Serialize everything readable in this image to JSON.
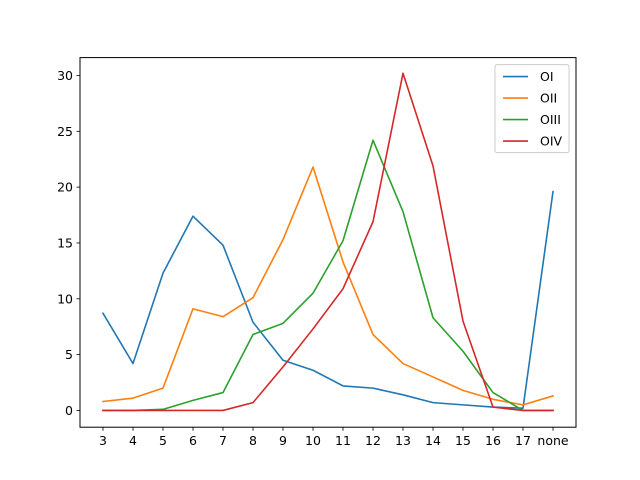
{
  "chart_data": {
    "type": "line",
    "title": "",
    "xlabel": "",
    "ylabel": "",
    "categories": [
      "3",
      "4",
      "5",
      "6",
      "7",
      "8",
      "9",
      "10",
      "11",
      "12",
      "13",
      "14",
      "15",
      "16",
      "17",
      "none"
    ],
    "ylim": [
      -1.5,
      31.6
    ],
    "yticks": [
      0,
      5,
      10,
      15,
      20,
      25,
      30
    ],
    "grid": false,
    "legend_position": "top-right",
    "series": [
      {
        "name": "OI",
        "color": "#1f77b4",
        "values": [
          8.7,
          4.2,
          12.3,
          17.4,
          14.8,
          7.9,
          4.5,
          3.6,
          2.2,
          2.0,
          1.4,
          0.7,
          0.5,
          0.3,
          0.2,
          19.6
        ]
      },
      {
        "name": "OII",
        "color": "#ff7f0e",
        "values": [
          0.8,
          1.1,
          2.0,
          9.1,
          8.4,
          10.1,
          15.3,
          21.8,
          13.3,
          6.8,
          4.2,
          3.0,
          1.8,
          1.0,
          0.5,
          1.3
        ]
      },
      {
        "name": "OIII",
        "color": "#2ca02c",
        "values": [
          0.0,
          0.0,
          0.1,
          0.9,
          1.6,
          6.8,
          7.8,
          10.5,
          15.2,
          24.2,
          17.8,
          8.3,
          5.3,
          1.6,
          0.0,
          0.0
        ]
      },
      {
        "name": "OIV",
        "color": "#d62728",
        "values": [
          0.0,
          0.0,
          0.0,
          0.0,
          0.0,
          0.7,
          3.9,
          7.3,
          10.9,
          16.9,
          30.2,
          21.9,
          8.0,
          0.3,
          0.0,
          0.0
        ]
      }
    ]
  }
}
